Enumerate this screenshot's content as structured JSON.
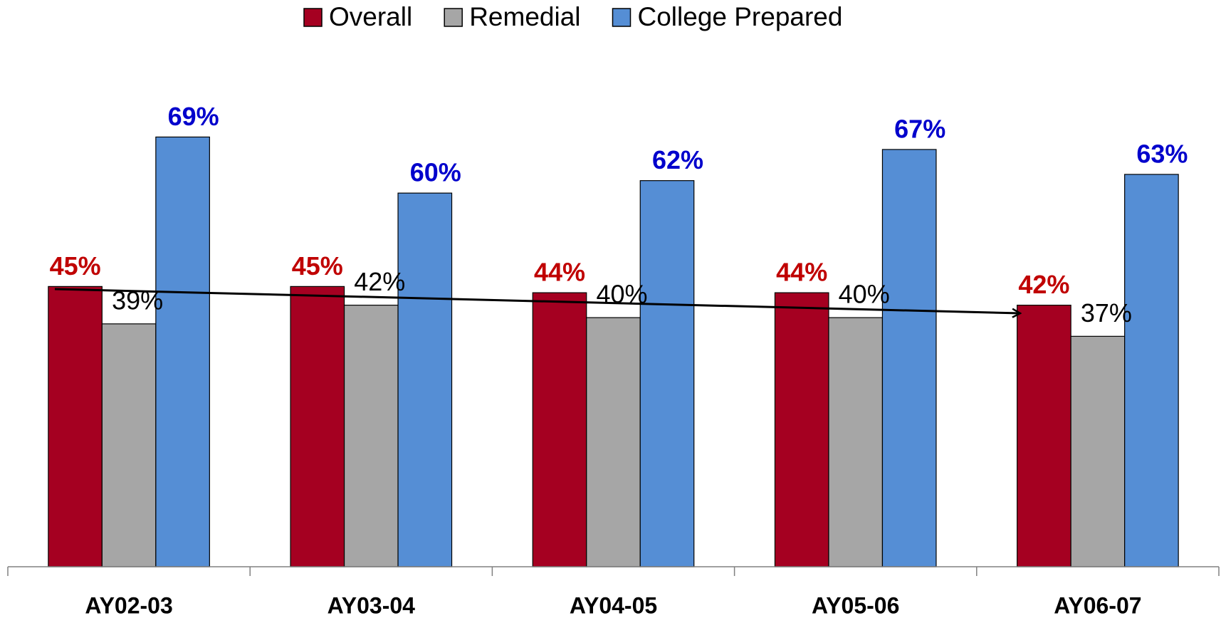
{
  "chart_data": {
    "type": "bar",
    "categories": [
      "AY02-03",
      "AY03-04",
      "AY04-05",
      "AY05-06",
      "AY06-07"
    ],
    "series": [
      {
        "name": "Overall",
        "color": "#a50021",
        "label_color": "#c00000",
        "label_bold": true,
        "values": [
          45,
          45,
          44,
          44,
          42
        ],
        "value_labels": [
          "45%",
          "45%",
          "44%",
          "44%",
          "42%"
        ]
      },
      {
        "name": "Remedial",
        "color": "#a6a6a6",
        "label_color": "#000000",
        "label_bold": false,
        "values": [
          39,
          42,
          40,
          40,
          37
        ],
        "value_labels": [
          "39%",
          "42%",
          "40%",
          "40%",
          "37%"
        ]
      },
      {
        "name": "College Prepared",
        "color": "#558ed5",
        "label_color": "#0000cc",
        "label_bold": true,
        "values": [
          69,
          60,
          62,
          67,
          63
        ],
        "value_labels": [
          "69%",
          "60%",
          "62%",
          "67%",
          "63%"
        ]
      }
    ],
    "ylim": [
      0,
      91
    ],
    "legend": "top"
  }
}
